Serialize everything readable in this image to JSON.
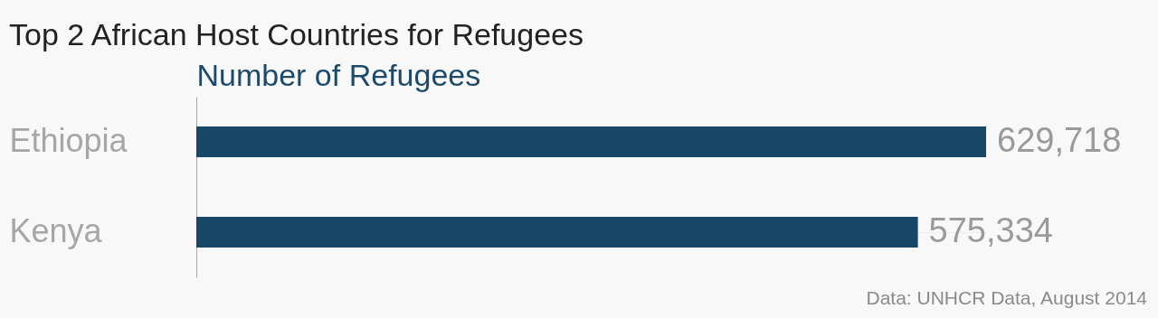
{
  "chart_data": {
    "type": "bar",
    "orientation": "horizontal",
    "title": "Top 2 African Host Countries for Refugees",
    "xlabel": "Number of Refugees",
    "categories": [
      "Ethiopia",
      "Kenya"
    ],
    "values": [
      629718,
      575334
    ],
    "color": "#174766",
    "value_labels": [
      "629,718",
      "575,334"
    ],
    "grid": "y",
    "tick_labels": "y",
    "annotations": [
      "Data: UNHCR Data, August 2014"
    ]
  }
}
